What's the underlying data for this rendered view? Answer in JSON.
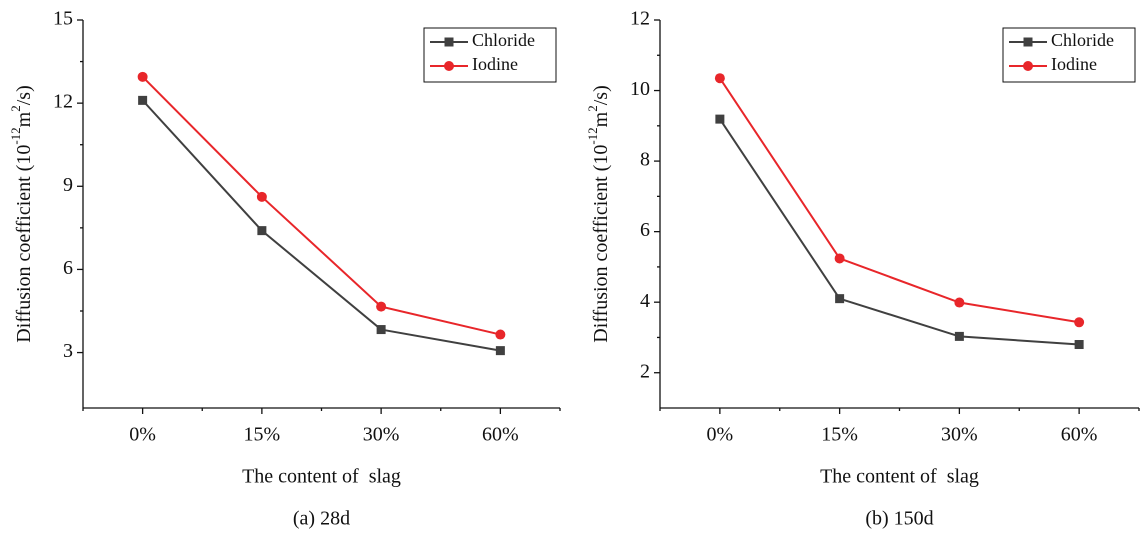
{
  "chart_data": [
    {
      "type": "line",
      "caption": "(a) 28d",
      "x_label": "The content of  slag",
      "y_label": [
        "Diffusion coefficient (10",
        "-12",
        "m",
        "2",
        "/s)"
      ],
      "categories": [
        "0%",
        "15%",
        "30%",
        "60%"
      ],
      "series": [
        {
          "name": "Chloride",
          "color": "#404040",
          "marker": "square",
          "values": [
            12.1,
            7.4,
            3.83,
            3.07
          ]
        },
        {
          "name": "Iodine",
          "color": "#e8262a",
          "marker": "circle",
          "values": [
            12.95,
            8.62,
            4.66,
            3.65
          ]
        }
      ],
      "ylim": [
        1,
        15
      ],
      "yticks": [
        3,
        6,
        9,
        12,
        15
      ],
      "legend": "upper right"
    },
    {
      "type": "line",
      "caption": "(b) 150d",
      "x_label": "The content of  slag",
      "y_label": [
        "Diffusion coefficient (10",
        "-12",
        "m",
        "2",
        "/s)"
      ],
      "categories": [
        "0%",
        "15%",
        "30%",
        "60%"
      ],
      "series": [
        {
          "name": "Chloride",
          "color": "#404040",
          "marker": "square",
          "values": [
            9.19,
            4.1,
            3.03,
            2.8
          ]
        },
        {
          "name": "Iodine",
          "color": "#e8262a",
          "marker": "circle",
          "values": [
            10.35,
            5.24,
            3.99,
            3.43
          ]
        }
      ],
      "ylim": [
        1,
        12
      ],
      "yticks": [
        2,
        4,
        6,
        8,
        10,
        12
      ],
      "legend": "upper right"
    }
  ]
}
